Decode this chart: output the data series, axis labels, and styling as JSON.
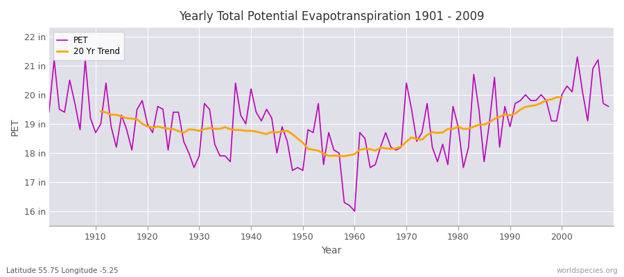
{
  "title": "Yearly Total Potential Evapotranspiration 1901 - 2009",
  "xlabel": "Year",
  "ylabel": "PET",
  "lat_lon_label": "Latitude 55.75 Longitude -5.25",
  "source_label": "worldspecies.org",
  "ylim": [
    15.5,
    22.3
  ],
  "xlim": [
    1901,
    2010
  ],
  "ytick_labels": [
    "16 in",
    "17 in",
    "18 in",
    "19 in",
    "20 in",
    "21 in",
    "22 in"
  ],
  "ytick_values": [
    16,
    17,
    18,
    19,
    20,
    21,
    22
  ],
  "xtick_values": [
    1910,
    1920,
    1930,
    1940,
    1950,
    1960,
    1970,
    1980,
    1990,
    2000
  ],
  "pet_color": "#BB00BB",
  "trend_color": "#FFA500",
  "bg_color": "#FFFFFF",
  "plot_bg_color": "#E0E0E8",
  "grid_color": "#FFFFFF",
  "pet_linewidth": 1.2,
  "trend_linewidth": 2.0,
  "years": [
    1901,
    1902,
    1903,
    1904,
    1905,
    1906,
    1907,
    1908,
    1909,
    1910,
    1911,
    1912,
    1913,
    1914,
    1915,
    1916,
    1917,
    1918,
    1919,
    1920,
    1921,
    1922,
    1923,
    1924,
    1925,
    1926,
    1927,
    1928,
    1929,
    1930,
    1931,
    1932,
    1933,
    1934,
    1935,
    1936,
    1937,
    1938,
    1939,
    1940,
    1941,
    1942,
    1943,
    1944,
    1945,
    1946,
    1947,
    1948,
    1949,
    1950,
    1951,
    1952,
    1953,
    1954,
    1955,
    1956,
    1957,
    1958,
    1959,
    1960,
    1961,
    1962,
    1963,
    1964,
    1965,
    1966,
    1967,
    1968,
    1969,
    1970,
    1971,
    1972,
    1973,
    1974,
    1975,
    1976,
    1977,
    1978,
    1979,
    1980,
    1981,
    1982,
    1983,
    1984,
    1985,
    1986,
    1987,
    1988,
    1989,
    1990,
    1991,
    1992,
    1993,
    1994,
    1995,
    1996,
    1997,
    1998,
    1999,
    2000,
    2001,
    2002,
    2003,
    2004,
    2005,
    2006,
    2007,
    2008,
    2009
  ],
  "pet_values": [
    19.4,
    21.2,
    19.5,
    19.4,
    20.5,
    19.7,
    18.8,
    21.2,
    19.2,
    18.7,
    19.0,
    20.4,
    18.9,
    18.2,
    19.3,
    18.8,
    18.1,
    19.5,
    19.8,
    19.0,
    18.7,
    19.6,
    19.5,
    18.1,
    19.4,
    19.4,
    18.4,
    18.0,
    17.5,
    17.9,
    19.7,
    19.5,
    18.3,
    17.9,
    17.9,
    17.7,
    20.4,
    19.3,
    19.0,
    20.2,
    19.4,
    19.1,
    19.5,
    19.2,
    18.0,
    18.9,
    18.4,
    17.4,
    17.5,
    17.4,
    18.8,
    18.7,
    19.7,
    17.6,
    18.7,
    18.1,
    18.0,
    16.3,
    16.2,
    16.0,
    18.7,
    18.5,
    17.5,
    17.6,
    18.2,
    18.7,
    18.2,
    18.1,
    18.2,
    20.4,
    19.5,
    18.4,
    18.7,
    19.7,
    18.2,
    17.7,
    18.3,
    17.6,
    19.6,
    18.9,
    17.5,
    18.2,
    20.7,
    19.5,
    17.7,
    19.0,
    20.6,
    18.2,
    19.6,
    18.9,
    19.7,
    19.8,
    20.0,
    19.8,
    19.8,
    20.0,
    19.8,
    19.1,
    19.1,
    20.0,
    20.3,
    20.1,
    21.3,
    20.1,
    19.1,
    20.9,
    21.2,
    19.7,
    19.6
  ]
}
